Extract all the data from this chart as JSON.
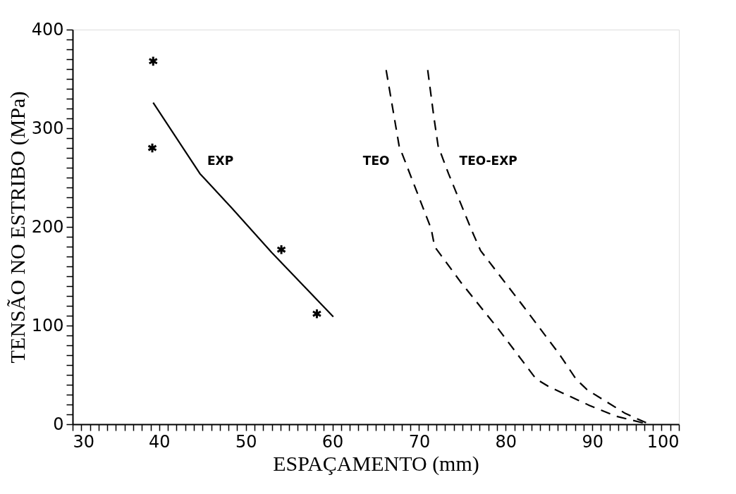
{
  "chart_data": {
    "type": "line",
    "xlabel": "ESPAÇAMENTO (mm)",
    "ylabel": "TENSÃO NO ESTRIBO (MPa)",
    "xlim": [
      30,
      100
    ],
    "ylim": [
      0,
      400
    ],
    "xticks": [
      30,
      {
        "value": 31,
        "label": null
      },
      {
        "value": 32,
        "label": null
      },
      {
        "value": 33,
        "label": null
      },
      {
        "value": 34,
        "label": null
      },
      {
        "value": 35,
        "label": null
      },
      {
        "value": 36,
        "label": null
      },
      {
        "value": 37,
        "label": null
      },
      {
        "value": 38,
        "label": null
      },
      {
        "value": 39,
        "label": null
      },
      40,
      {
        "value": 41,
        "label": null
      },
      {
        "value": 42,
        "label": null
      },
      {
        "value": 43,
        "label": null
      },
      {
        "value": 44,
        "label": null
      },
      {
        "value": 45,
        "label": null
      },
      {
        "value": 46,
        "label": null
      },
      {
        "value": 47,
        "label": null
      },
      {
        "value": 48,
        "label": null
      },
      {
        "value": 49,
        "label": null
      },
      50,
      {
        "value": 51,
        "label": null
      },
      {
        "value": 52,
        "label": null
      },
      {
        "value": 53,
        "label": null
      },
      {
        "value": 54,
        "label": null
      },
      {
        "value": 55,
        "label": null
      },
      {
        "value": 56,
        "label": null
      },
      {
        "value": 57,
        "label": null
      },
      {
        "value": 58,
        "label": null
      },
      {
        "value": 59,
        "label": null
      },
      60,
      {
        "value": 61,
        "label": null
      },
      {
        "value": 62,
        "label": null
      },
      {
        "value": 63,
        "label": null
      },
      {
        "value": 64,
        "label": null
      },
      {
        "value": 65,
        "label": null
      },
      {
        "value": 66,
        "label": null
      },
      {
        "value": 67,
        "label": null
      },
      {
        "value": 68,
        "label": null
      },
      {
        "value": 69,
        "label": null
      },
      70,
      {
        "value": 71,
        "label": null
      },
      {
        "value": 72,
        "label": null
      },
      {
        "value": 73,
        "label": null
      },
      {
        "value": 74,
        "label": null
      },
      {
        "value": 75,
        "label": null
      },
      {
        "value": 76,
        "label": null
      },
      {
        "value": 77,
        "label": null
      },
      {
        "value": 78,
        "label": null
      },
      {
        "value": 79,
        "label": null
      },
      80,
      {
        "value": 81,
        "label": null
      },
      {
        "value": 82,
        "label": null
      },
      {
        "value": 83,
        "label": null
      },
      {
        "value": 84,
        "label": null
      },
      {
        "value": 85,
        "label": null
      },
      {
        "value": 86,
        "label": null
      },
      {
        "value": 87,
        "label": null
      },
      {
        "value": 88,
        "label": null
      },
      {
        "value": 89,
        "label": null
      },
      90,
      {
        "value": 91,
        "label": null
      },
      {
        "value": 92,
        "label": null
      },
      {
        "value": 93,
        "label": null
      },
      {
        "value": 94,
        "label": null
      },
      {
        "value": 95,
        "label": null
      },
      {
        "value": 96,
        "label": null
      },
      {
        "value": 97,
        "label": null
      },
      {
        "value": 98,
        "label": null
      },
      {
        "value": 99,
        "label": null
      },
      100
    ],
    "yticks": [
      0,
      {
        "value": 10,
        "label": null
      },
      {
        "value": 20,
        "label": null
      },
      {
        "value": 30,
        "label": null
      },
      {
        "value": 40,
        "label": null
      },
      {
        "value": 50,
        "label": null
      },
      {
        "value": 60,
        "label": null
      },
      {
        "value": 70,
        "label": null
      },
      {
        "value": 80,
        "label": null
      },
      {
        "value": 90,
        "label": null
      },
      100,
      {
        "value": 110,
        "label": null
      },
      {
        "value": 120,
        "label": null
      },
      {
        "value": 130,
        "label": null
      },
      {
        "value": 140,
        "label": null
      },
      {
        "value": 150,
        "label": null
      },
      {
        "value": 160,
        "label": null
      },
      {
        "value": 170,
        "label": null
      },
      {
        "value": 180,
        "label": null
      },
      {
        "value": 190,
        "label": null
      },
      200,
      {
        "value": 210,
        "label": null
      },
      {
        "value": 220,
        "label": null
      },
      {
        "value": 230,
        "label": null
      },
      {
        "value": 240,
        "label": null
      },
      {
        "value": 250,
        "label": null
      },
      {
        "value": 260,
        "label": null
      },
      {
        "value": 270,
        "label": null
      },
      {
        "value": 280,
        "label": null
      },
      {
        "value": 290,
        "label": null
      },
      300,
      {
        "value": 310,
        "label": null
      },
      {
        "value": 320,
        "label": null
      },
      {
        "value": 330,
        "label": null
      },
      {
        "value": 340,
        "label": null
      },
      {
        "value": 350,
        "label": null
      },
      {
        "value": 360,
        "label": null
      },
      {
        "value": 370,
        "label": null
      },
      {
        "value": 380,
        "label": null
      },
      {
        "value": 390,
        "label": null
      },
      400
    ],
    "grid": false,
    "series": [
      {
        "type": "scatter",
        "marker": "cross",
        "color": "#000000",
        "x": [
          39.3,
          39.2,
          54.1,
          58.2
        ],
        "values": [
          368,
          280,
          177,
          112
        ]
      },
      {
        "name": "EXP",
        "line_style": "solid",
        "color": "#000000",
        "x": [
          39.3,
          44.7,
          48.4,
          53.0,
          60.1
        ],
        "values": [
          326,
          254,
          219,
          174,
          109
        ]
      },
      {
        "name": "TEO",
        "line_style": "dashed",
        "color": "#000000",
        "x": [
          66.2,
          67.7,
          71.4,
          71.8,
          74.9,
          79.2,
          83.5,
          85.0,
          89.7,
          92.8,
          96.5
        ],
        "values": [
          359,
          282,
          198,
          180,
          143,
          96,
          46,
          38,
          19,
          8,
          0
        ]
      },
      {
        "name": "TEO-EXP",
        "line_style": "dashed",
        "color": "#000000",
        "x": [
          71.0,
          71.7,
          72.2,
          73.4,
          76.1,
          77.1,
          82.0,
          86.2,
          88.1,
          89.4,
          93.8,
          96.6
        ],
        "values": [
          359,
          312,
          282,
          254,
          196,
          176,
          120,
          71,
          46,
          35,
          11,
          0
        ]
      }
    ]
  }
}
